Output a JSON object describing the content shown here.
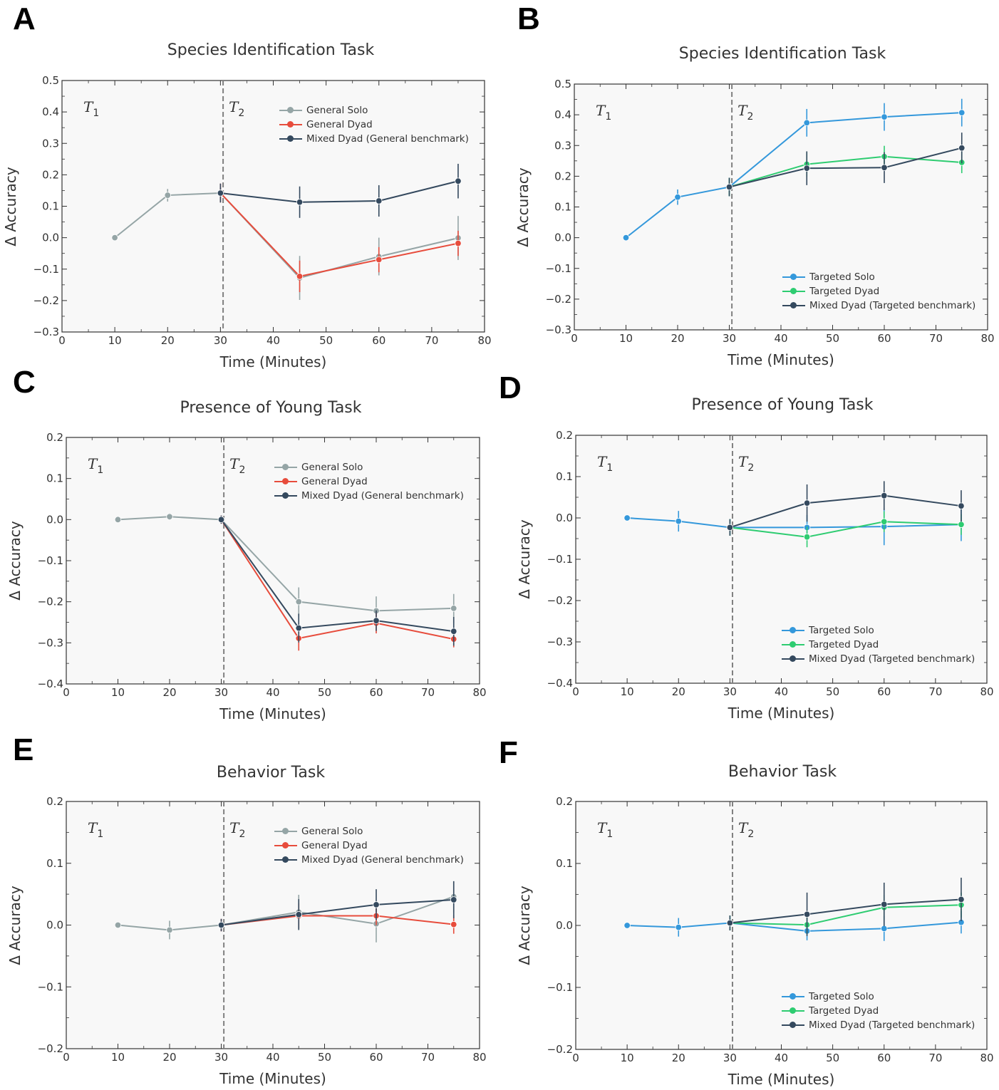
{
  "colors": {
    "general_solo": "#95a5a6",
    "general_dyad": "#e74c3c",
    "mixed_dyad": "#34495e",
    "targeted_solo": "#3498db",
    "targeted_dyad": "#2ecc71",
    "plot_bg": "#f8f8f8",
    "vline": "#808080"
  },
  "chart_data": [
    {
      "id": "A",
      "panel_label": "A",
      "type": "line",
      "title": "Species Identification Task",
      "xlabel": "Time (Minutes)",
      "ylabel": "Δ Accuracy",
      "xlim": [
        0,
        80
      ],
      "ylim": [
        -0.3,
        0.5
      ],
      "xticks": [
        0,
        10,
        20,
        30,
        40,
        50,
        60,
        70,
        80
      ],
      "yticks": [
        -0.3,
        -0.2,
        -0.1,
        0.0,
        0.1,
        0.2,
        0.3,
        0.4,
        0.5
      ],
      "ytick_labels": [
        "−0.3",
        "−0.2",
        "−0.1",
        "0.0",
        "0.1",
        "0.2",
        "0.3",
        "0.4",
        "0.5"
      ],
      "vline_x": 30.5,
      "phase_labels": [
        "T",
        "T"
      ],
      "phase_subscripts": [
        "1",
        "2"
      ],
      "legend_position": "top-right",
      "series": [
        {
          "name": "General Solo",
          "color_key": "general_solo",
          "x": [
            10,
            20,
            30,
            45,
            60,
            75
          ],
          "y": [
            0.0,
            0.135,
            0.142,
            -0.128,
            -0.06,
            -0.001
          ],
          "err": [
            0,
            0.02,
            0.03,
            0.07,
            0.06,
            0.07
          ]
        },
        {
          "name": "General Dyad",
          "color_key": "general_dyad",
          "x": [
            30,
            45,
            60,
            75
          ],
          "y": [
            0.142,
            -0.123,
            -0.07,
            -0.018
          ],
          "err": [
            0.03,
            0.05,
            0.04,
            0.04
          ]
        },
        {
          "name": "Mixed Dyad (General benchmark)",
          "color_key": "mixed_dyad",
          "x": [
            30,
            45,
            60,
            75
          ],
          "y": [
            0.142,
            0.113,
            0.117,
            0.18
          ],
          "err": [
            0.03,
            0.05,
            0.05,
            0.055
          ]
        }
      ]
    },
    {
      "id": "B",
      "panel_label": "B",
      "type": "line",
      "title": "Species Identification Task",
      "xlabel": "Time (Minutes)",
      "ylabel": "Δ Accuracy",
      "xlim": [
        0,
        80
      ],
      "ylim": [
        -0.3,
        0.5
      ],
      "xticks": [
        0,
        10,
        20,
        30,
        40,
        50,
        60,
        70,
        80
      ],
      "yticks": [
        -0.3,
        -0.2,
        -0.1,
        0.0,
        0.1,
        0.2,
        0.3,
        0.4,
        0.5
      ],
      "ytick_labels": [
        "−0.3",
        "−0.2",
        "−0.1",
        "0.0",
        "0.1",
        "0.2",
        "0.3",
        "0.4",
        "0.5"
      ],
      "vline_x": 30.5,
      "phase_labels": [
        "T",
        "T"
      ],
      "phase_subscripts": [
        "1",
        "2"
      ],
      "legend_position": "bottom-right",
      "series": [
        {
          "name": "Targeted Solo",
          "color_key": "targeted_solo",
          "x": [
            10,
            20,
            30,
            45,
            60,
            75
          ],
          "y": [
            0.0,
            0.132,
            0.165,
            0.374,
            0.393,
            0.407
          ],
          "err": [
            0,
            0.025,
            0.03,
            0.045,
            0.045,
            0.045
          ]
        },
        {
          "name": "Targeted Dyad",
          "color_key": "targeted_dyad",
          "x": [
            30,
            45,
            60,
            75
          ],
          "y": [
            0.165,
            0.239,
            0.264,
            0.245
          ],
          "err": [
            0.03,
            0.04,
            0.035,
            0.035
          ]
        },
        {
          "name": "Mixed Dyad (Targeted benchmark)",
          "color_key": "mixed_dyad",
          "x": [
            30,
            45,
            60,
            75
          ],
          "y": [
            0.165,
            0.226,
            0.228,
            0.292
          ],
          "err": [
            0.03,
            0.055,
            0.05,
            0.05
          ]
        }
      ]
    },
    {
      "id": "C",
      "panel_label": "C",
      "type": "line",
      "title": "Presence of Young Task",
      "xlabel": "Time (Minutes)",
      "ylabel": "Δ Accuracy",
      "xlim": [
        0,
        80
      ],
      "ylim": [
        -0.4,
        0.2
      ],
      "xticks": [
        0,
        10,
        20,
        30,
        40,
        50,
        60,
        70,
        80
      ],
      "yticks": [
        -0.4,
        -0.3,
        -0.2,
        -0.1,
        0.0,
        0.1,
        0.2
      ],
      "ytick_labels": [
        "−0.4",
        "−0.3",
        "−0.2",
        "−0.1",
        "0.0",
        "0.1",
        "0.2"
      ],
      "vline_x": 30.5,
      "phase_labels": [
        "T",
        "T"
      ],
      "phase_subscripts": [
        "1",
        "2"
      ],
      "legend_position": "top-right",
      "series": [
        {
          "name": "General Solo",
          "color_key": "general_solo",
          "x": [
            10,
            20,
            30,
            45,
            60,
            75
          ],
          "y": [
            0.0,
            0.007,
            0.0,
            -0.2,
            -0.222,
            -0.216
          ],
          "err": [
            0,
            0.008,
            0.01,
            0.035,
            0.035,
            0.035
          ]
        },
        {
          "name": "General Dyad",
          "color_key": "general_dyad",
          "x": [
            30,
            45,
            60,
            75
          ],
          "y": [
            0.0,
            -0.289,
            -0.252,
            -0.291
          ],
          "err": [
            0.01,
            0.03,
            0.025,
            0.02
          ]
        },
        {
          "name": "Mixed Dyad (General benchmark)",
          "color_key": "mixed_dyad",
          "x": [
            30,
            45,
            60,
            75
          ],
          "y": [
            0.0,
            -0.264,
            -0.246,
            -0.272
          ],
          "err": [
            0.01,
            0.035,
            0.025,
            0.035
          ]
        }
      ]
    },
    {
      "id": "D",
      "panel_label": "D",
      "type": "line",
      "title": "Presence of Young Task",
      "xlabel": "Time (Minutes)",
      "ylabel": "Δ Accuracy",
      "xlim": [
        0,
        80
      ],
      "ylim": [
        -0.4,
        0.2
      ],
      "xticks": [
        0,
        10,
        20,
        30,
        40,
        50,
        60,
        70,
        80
      ],
      "yticks": [
        -0.4,
        -0.3,
        -0.2,
        -0.1,
        0.0,
        0.1,
        0.2
      ],
      "ytick_labels": [
        "−0.4",
        "−0.3",
        "−0.2",
        "−0.1",
        "0.0",
        "0.1",
        "0.2"
      ],
      "vline_x": 30.5,
      "phase_labels": [
        "T",
        "T"
      ],
      "phase_subscripts": [
        "1",
        "2"
      ],
      "legend_position": "bottom-right",
      "series": [
        {
          "name": "Targeted Solo",
          "color_key": "targeted_solo",
          "x": [
            10,
            20,
            30,
            45,
            60,
            75
          ],
          "y": [
            0.0,
            -0.008,
            -0.023,
            -0.023,
            -0.021,
            -0.016
          ],
          "err": [
            0,
            0.025,
            0.02,
            0.03,
            0.045,
            0.04
          ]
        },
        {
          "name": "Targeted Dyad",
          "color_key": "targeted_dyad",
          "x": [
            30,
            45,
            60,
            75
          ],
          "y": [
            -0.023,
            -0.046,
            -0.009,
            -0.016
          ],
          "err": [
            0.02,
            0.025,
            0.025,
            0.025
          ]
        },
        {
          "name": "Mixed Dyad (Targeted benchmark)",
          "color_key": "mixed_dyad",
          "x": [
            30,
            45,
            60,
            75
          ],
          "y": [
            -0.023,
            0.036,
            0.054,
            0.029
          ],
          "err": [
            0.02,
            0.045,
            0.035,
            0.038
          ]
        }
      ]
    },
    {
      "id": "E",
      "panel_label": "E",
      "type": "line",
      "title": "Behavior Task",
      "xlabel": "Time (Minutes)",
      "ylabel": "Δ Accuracy",
      "xlim": [
        0,
        80
      ],
      "ylim": [
        -0.2,
        0.2
      ],
      "xticks": [
        0,
        10,
        20,
        30,
        40,
        50,
        60,
        70,
        80
      ],
      "yticks": [
        -0.2,
        -0.1,
        0.0,
        0.1,
        0.2
      ],
      "ytick_labels": [
        "−0.2",
        "−0.1",
        "0.0",
        "0.1",
        "0.2"
      ],
      "vline_x": 30.5,
      "phase_labels": [
        "T",
        "T"
      ],
      "phase_subscripts": [
        "1",
        "2"
      ],
      "legend_position": "top-right",
      "series": [
        {
          "name": "General Solo",
          "color_key": "general_solo",
          "x": [
            10,
            20,
            30,
            45,
            60,
            75
          ],
          "y": [
            0.0,
            -0.008,
            0.0,
            0.021,
            0.002,
            0.046
          ],
          "err": [
            0,
            0.015,
            0.01,
            0.028,
            0.03,
            0.025
          ]
        },
        {
          "name": "General Dyad",
          "color_key": "general_dyad",
          "x": [
            30,
            45,
            60,
            75
          ],
          "y": [
            0.0,
            0.015,
            0.015,
            0.001
          ],
          "err": [
            0.01,
            0.02,
            0.015,
            0.015
          ]
        },
        {
          "name": "Mixed Dyad (General benchmark)",
          "color_key": "mixed_dyad",
          "x": [
            30,
            45,
            60,
            75
          ],
          "y": [
            0.0,
            0.017,
            0.033,
            0.041
          ],
          "err": [
            0.01,
            0.025,
            0.025,
            0.03
          ]
        }
      ]
    },
    {
      "id": "F",
      "panel_label": "F",
      "type": "line",
      "title": "Behavior Task",
      "xlabel": "Time (Minutes)",
      "ylabel": "Δ Accuracy",
      "xlim": [
        0,
        80
      ],
      "ylim": [
        -0.2,
        0.2
      ],
      "xticks": [
        0,
        10,
        20,
        30,
        40,
        50,
        60,
        70,
        80
      ],
      "yticks": [
        -0.2,
        -0.1,
        0.0,
        0.1,
        0.2
      ],
      "ytick_labels": [
        "−0.2",
        "−0.1",
        "0.0",
        "0.1",
        "0.2"
      ],
      "vline_x": 30.5,
      "phase_labels": [
        "T",
        "T"
      ],
      "phase_subscripts": [
        "1",
        "2"
      ],
      "legend_position": "bottom-right",
      "series": [
        {
          "name": "Targeted Solo",
          "color_key": "targeted_solo",
          "x": [
            10,
            20,
            30,
            45,
            60,
            75
          ],
          "y": [
            0.0,
            -0.003,
            0.004,
            -0.009,
            -0.005,
            0.005
          ],
          "err": [
            0,
            0.015,
            0.012,
            0.015,
            0.02,
            0.018
          ]
        },
        {
          "name": "Targeted Dyad",
          "color_key": "targeted_dyad",
          "x": [
            30,
            45,
            60,
            75
          ],
          "y": [
            0.004,
            0.001,
            0.029,
            0.033
          ],
          "err": [
            0.012,
            0.015,
            0.02,
            0.02
          ]
        },
        {
          "name": "Mixed Dyad (Targeted benchmark)",
          "color_key": "mixed_dyad",
          "x": [
            30,
            45,
            60,
            75
          ],
          "y": [
            0.004,
            0.018,
            0.034,
            0.042
          ],
          "err": [
            0.012,
            0.035,
            0.035,
            0.035
          ]
        }
      ]
    }
  ]
}
